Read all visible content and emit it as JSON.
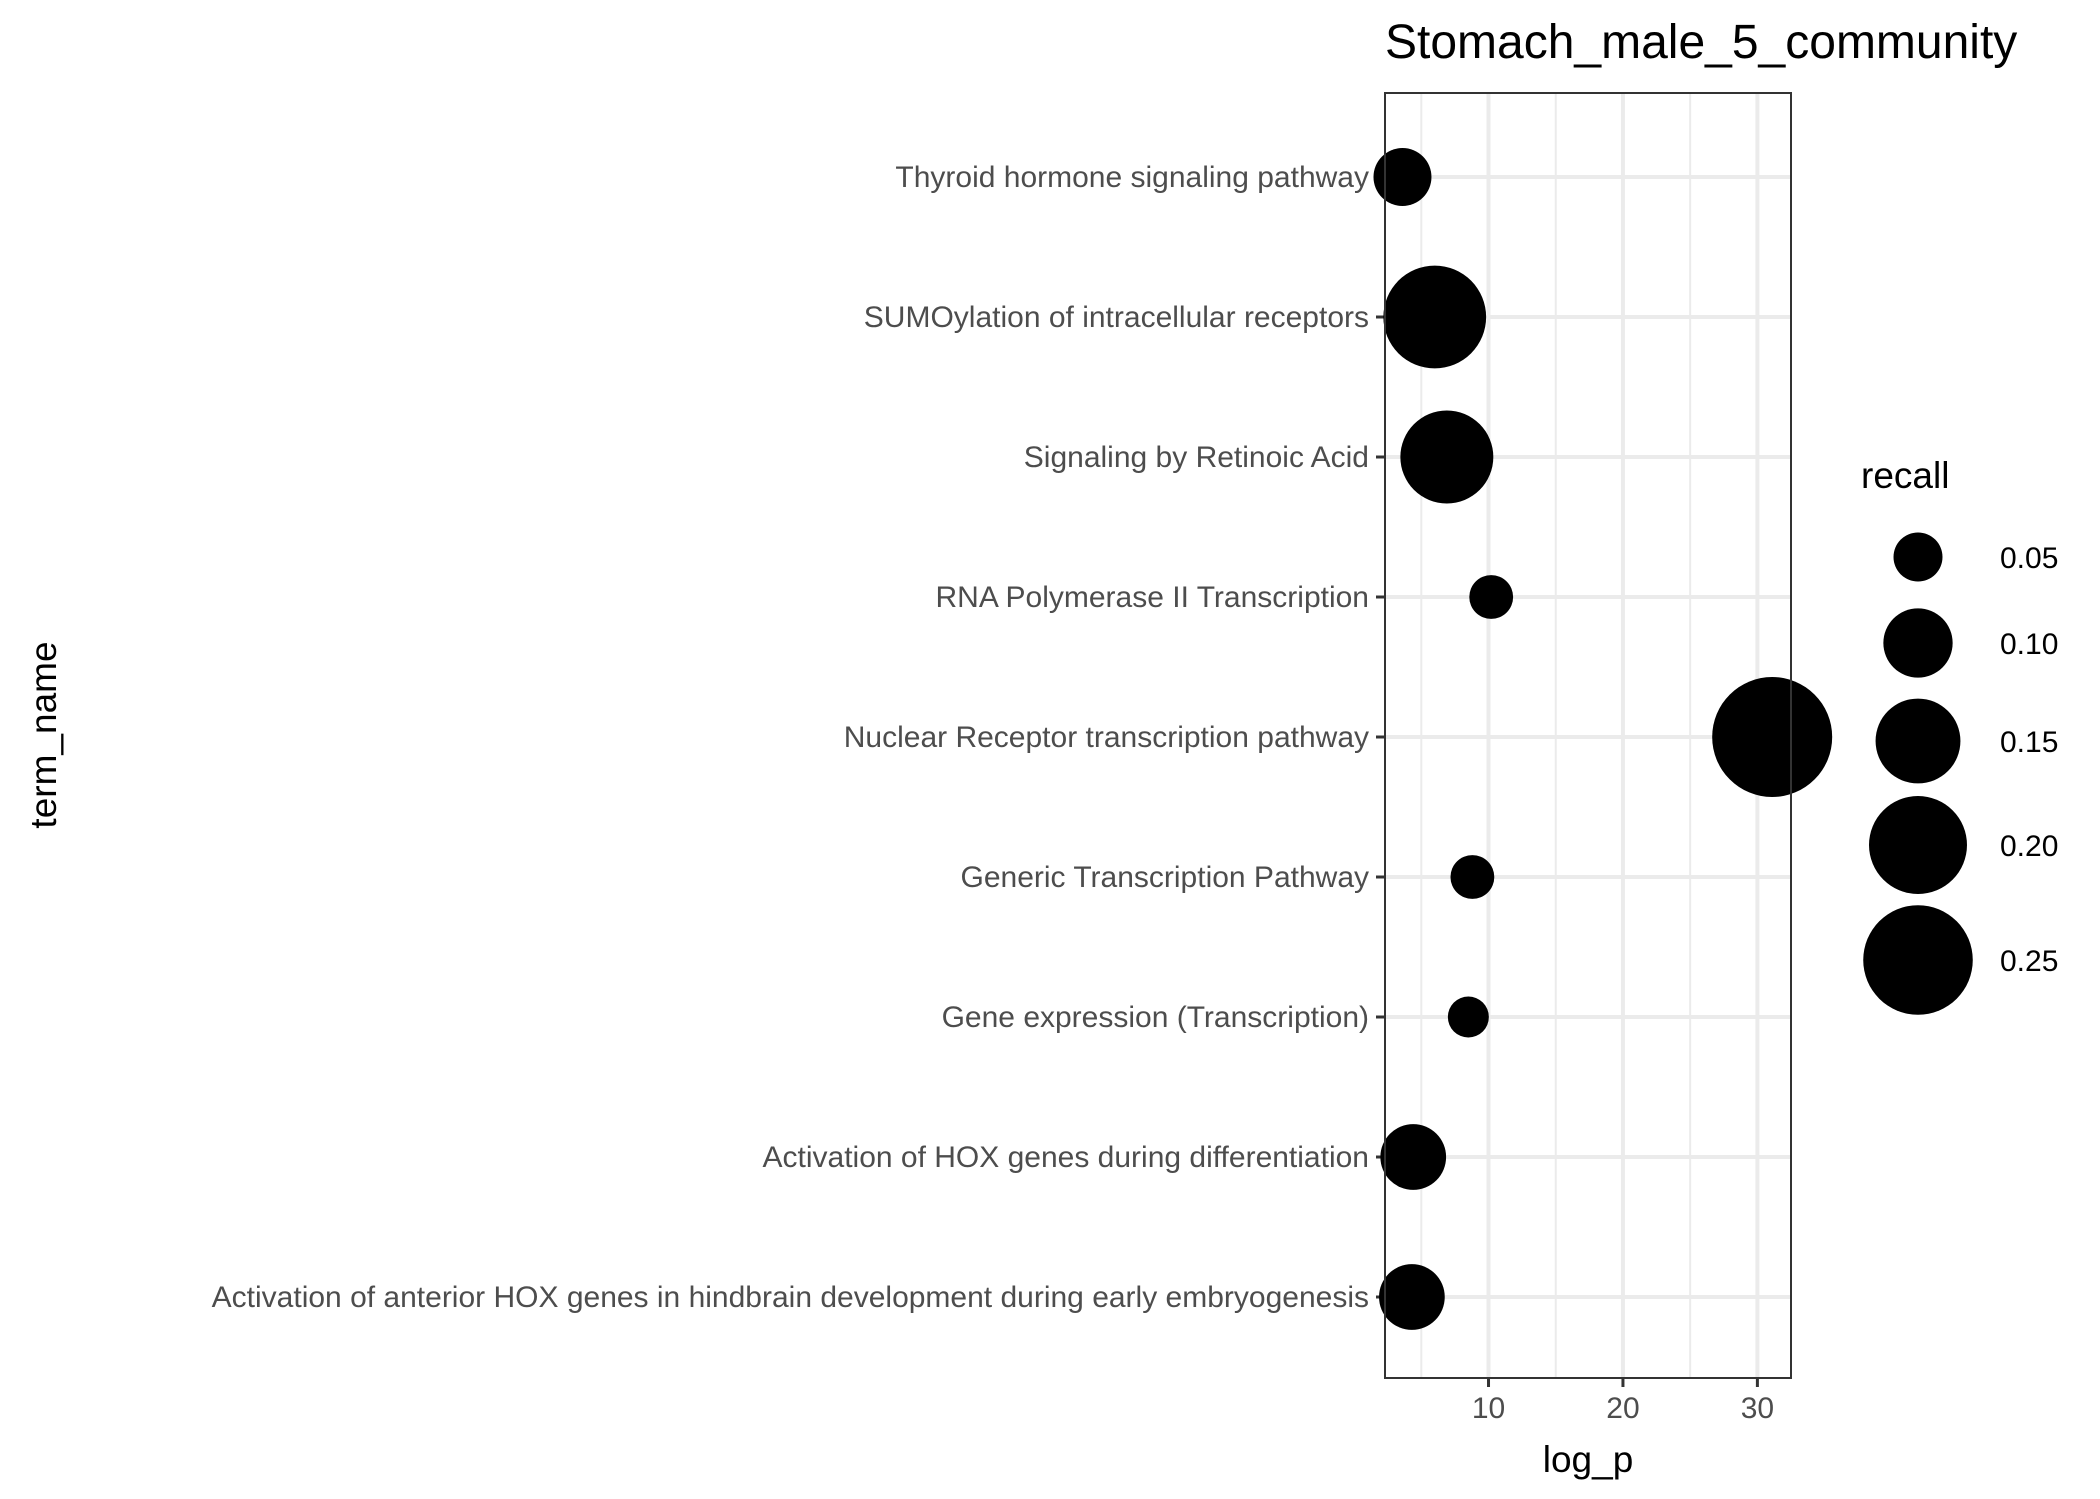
{
  "chart_data": {
    "type": "scatter",
    "title": "Stomach_male_5_community",
    "xlabel": "log_p",
    "ylabel": "term_name",
    "xlim": [
      2.3,
      32.5
    ],
    "x_ticks": [
      10,
      20,
      30
    ],
    "grid": true,
    "legend": {
      "title": "recall",
      "position": "right",
      "entries": [
        {
          "label": "0.05",
          "value": 0.05
        },
        {
          "label": "0.10",
          "value": 0.1
        },
        {
          "label": "0.15",
          "value": 0.15
        },
        {
          "label": "0.20",
          "value": 0.2
        },
        {
          "label": "0.25",
          "value": 0.25
        }
      ]
    },
    "categories": [
      "Thyroid hormone signaling pathway",
      "SUMOylation of intracellular receptors",
      "Signaling by Retinoic Acid",
      "RNA Polymerase II Transcription",
      "Nuclear Receptor transcription pathway",
      "Generic Transcription Pathway",
      "Gene expression (Transcription)",
      "Activation of HOX genes during differentiation",
      "Activation of anterior HOX genes in hindbrain development during early embryogenesis"
    ],
    "points": [
      {
        "term": "Thyroid hormone signaling pathway",
        "log_p": 3.6,
        "recall": 0.07
      },
      {
        "term": "SUMOylation of intracellular receptors",
        "log_p": 6.0,
        "recall": 0.22
      },
      {
        "term": "Signaling by Retinoic Acid",
        "log_p": 6.9,
        "recall": 0.18
      },
      {
        "term": "RNA Polymerase II Transcription",
        "log_p": 10.2,
        "recall": 0.04
      },
      {
        "term": "Nuclear Receptor transcription pathway",
        "log_p": 31.1,
        "recall": 0.3
      },
      {
        "term": "Generic Transcription Pathway",
        "log_p": 8.8,
        "recall": 0.04
      },
      {
        "term": "Gene expression (Transcription)",
        "log_p": 8.5,
        "recall": 0.035
      },
      {
        "term": "Activation of HOX genes during differentiation",
        "log_p": 4.4,
        "recall": 0.09
      },
      {
        "term": "Activation of anterior HOX genes in hindbrain development during early embryogenesis",
        "log_p": 4.3,
        "recall": 0.09
      }
    ],
    "colors": {
      "point": "#000000",
      "grid": "#ebebeb",
      "panel_border": "#333333"
    }
  }
}
